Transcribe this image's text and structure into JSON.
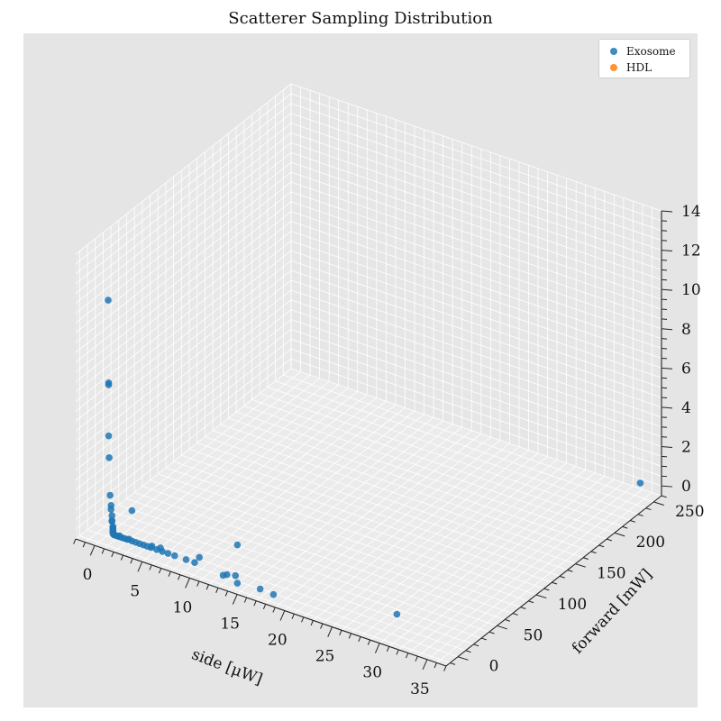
{
  "chart_data": {
    "type": "scatter3d",
    "title": "Scatterer Sampling Distribution",
    "xlabel": "side [μW]",
    "ylabel": "forward [mW]",
    "zlabel": "",
    "xlim": [
      -2,
      37
    ],
    "ylim": [
      -15,
      260
    ],
    "zlim": [
      -0.5,
      14
    ],
    "xticks": [
      0,
      5,
      10,
      15,
      20,
      25,
      30,
      35
    ],
    "yticks": [
      0,
      50,
      100,
      150,
      200,
      250
    ],
    "zticks": [
      0,
      2,
      4,
      6,
      8,
      10,
      12,
      14
    ],
    "background": "#e5e5e5",
    "grid": true,
    "legend": {
      "placement": "top-right",
      "entries": [
        {
          "name": "Exosome",
          "color": "#1f77b4"
        },
        {
          "name": "HDL",
          "color": "#ff7f0e"
        }
      ]
    },
    "series": [
      {
        "name": "Exosome",
        "color": "#1f77b4",
        "points": [
          {
            "x": 0.1,
            "y": 1,
            "z": 11.5
          },
          {
            "x": 0.15,
            "y": 1,
            "z": 7.3
          },
          {
            "x": 0.15,
            "y": 1,
            "z": 7.2
          },
          {
            "x": 0.15,
            "y": 1,
            "z": 4.6
          },
          {
            "x": 0.2,
            "y": 1,
            "z": 3.5
          },
          {
            "x": 0.3,
            "y": 1,
            "z": 1.6
          },
          {
            "x": 0.4,
            "y": 1,
            "z": 1.1
          },
          {
            "x": 0.4,
            "y": 1,
            "z": 0.9
          },
          {
            "x": 0.5,
            "y": 1,
            "z": 0.6
          },
          {
            "x": 0.5,
            "y": 1,
            "z": 0.35
          },
          {
            "x": 0.5,
            "y": 1,
            "z": 0.3
          },
          {
            "x": 0.6,
            "y": 1,
            "z": 0.05
          },
          {
            "x": 0.6,
            "y": 1,
            "z": 0.0
          },
          {
            "x": 0.6,
            "y": 1,
            "z": -0.05
          },
          {
            "x": 0.6,
            "y": 1,
            "z": -0.1
          },
          {
            "x": 0.6,
            "y": 1,
            "z": -0.15
          },
          {
            "x": 0.6,
            "y": 1,
            "z": -0.2
          },
          {
            "x": 0.6,
            "y": 1,
            "z": -0.25
          },
          {
            "x": 0.6,
            "y": 1,
            "z": -0.3
          },
          {
            "x": 0.7,
            "y": 1,
            "z": -0.35
          },
          {
            "x": 0.8,
            "y": 1,
            "z": -0.35
          },
          {
            "x": 1.0,
            "y": 1,
            "z": -0.35
          },
          {
            "x": 1.2,
            "y": 1,
            "z": -0.35
          },
          {
            "x": 1.3,
            "y": 1,
            "z": -0.3
          },
          {
            "x": 1.5,
            "y": 1,
            "z": -0.35
          },
          {
            "x": 1.8,
            "y": 1,
            "z": -0.35
          },
          {
            "x": 2.1,
            "y": 1,
            "z": -0.35
          },
          {
            "x": 2.3,
            "y": 1,
            "z": -0.3
          },
          {
            "x": 2.6,
            "y": 1,
            "z": -0.35
          },
          {
            "x": 3.0,
            "y": 1,
            "z": -0.35
          },
          {
            "x": 3.4,
            "y": 1,
            "z": -0.35
          },
          {
            "x": 3.8,
            "y": 1,
            "z": -0.35
          },
          {
            "x": 4.2,
            "y": 1,
            "z": -0.35
          },
          {
            "x": 4.6,
            "y": 1,
            "z": -0.35
          },
          {
            "x": 4.7,
            "y": 1,
            "z": -0.25
          },
          {
            "x": 5.2,
            "y": 1,
            "z": -0.35
          },
          {
            "x": 5.8,
            "y": 1,
            "z": -0.35
          },
          {
            "x": 5.6,
            "y": 1,
            "z": -0.2
          },
          {
            "x": 6.4,
            "y": 1,
            "z": -0.35
          },
          {
            "x": 7.1,
            "y": 1,
            "z": -0.35
          },
          {
            "x": 8.3,
            "y": 1,
            "z": -0.35
          },
          {
            "x": 9.2,
            "y": 1,
            "z": -0.35
          },
          {
            "x": 9.7,
            "y": 1,
            "z": 0.0
          },
          {
            "x": 12.2,
            "y": 1,
            "z": -0.5
          },
          {
            "x": 12.6,
            "y": 1,
            "z": -0.4
          },
          {
            "x": 13.5,
            "y": 1,
            "z": -0.3
          },
          {
            "x": 13.7,
            "y": 1,
            "z": -0.65
          },
          {
            "x": 16.1,
            "y": 1,
            "z": -0.55
          },
          {
            "x": 17.5,
            "y": 1,
            "z": -0.6
          },
          {
            "x": 2.6,
            "y": 1,
            "z": 1.2
          },
          {
            "x": 13.7,
            "y": 1,
            "z": 1.3
          },
          {
            "x": 30.5,
            "y": 1,
            "z": 0.55
          },
          {
            "x": 36.0,
            "y": 245,
            "z": 0.45
          }
        ]
      },
      {
        "name": "HDL",
        "color": "#ff7f0e",
        "points": []
      }
    ]
  }
}
